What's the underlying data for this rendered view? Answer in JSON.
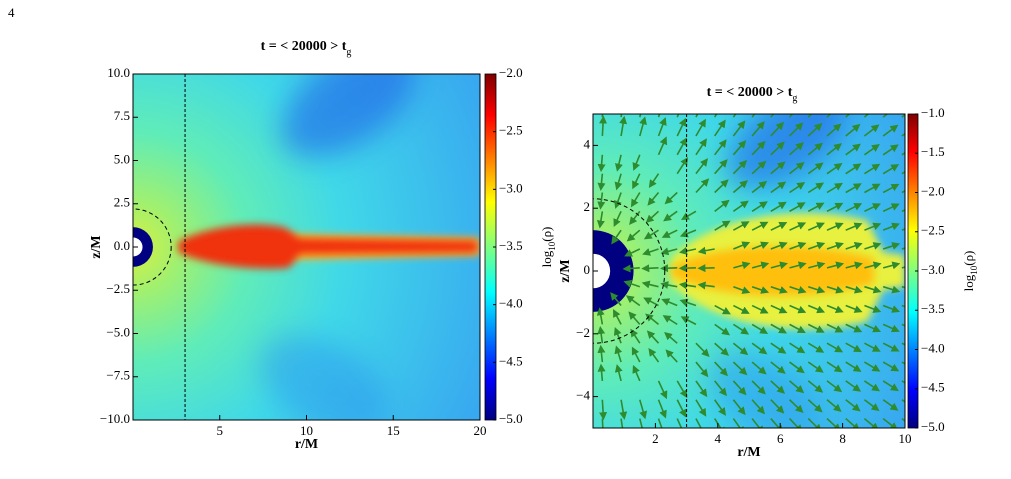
{
  "page_number": "4",
  "chart_data": [
    {
      "type": "heatmap",
      "title": "t = < 20000 > t",
      "title_subscript": "g",
      "xlabel": "r/M",
      "ylabel": "z/M",
      "xlim": [
        0,
        20
      ],
      "xticks": [
        5,
        10,
        15,
        20
      ],
      "ylim": [
        -10,
        10
      ],
      "yticks": [
        {
          "value": -10,
          "label": "−10.0"
        },
        {
          "value": -7.5,
          "label": "−7.5"
        },
        {
          "value": -5,
          "label": "−5.0"
        },
        {
          "value": -2.5,
          "label": "−2.5"
        },
        {
          "value": 0,
          "label": "0.0"
        },
        {
          "value": 2.5,
          "label": "2.5"
        },
        {
          "value": 5,
          "label": "5.0"
        },
        {
          "value": 7.5,
          "label": "7.5"
        },
        {
          "value": 10,
          "label": "10.0"
        }
      ],
      "colorbar_label": [
        "log",
        "10",
        "(ρ)"
      ],
      "clim": [
        -5,
        -2
      ],
      "cticks": [
        {
          "value": -5,
          "label": "−5.0"
        },
        {
          "value": -4.5,
          "label": "−4.5"
        },
        {
          "value": -4,
          "label": "−4.0"
        },
        {
          "value": -3.5,
          "label": "−3.5"
        },
        {
          "value": -3,
          "label": "−3.0"
        },
        {
          "value": -2.5,
          "label": "−2.5"
        },
        {
          "value": -2,
          "label": "−2.0"
        }
      ],
      "vline_x": 3,
      "dashed_circle_r": 2.2,
      "vectors": false
    },
    {
      "type": "heatmap",
      "title": "t = < 20000 > t",
      "title_subscript": "g",
      "xlabel": "r/M",
      "ylabel": "z/M",
      "xlim": [
        0,
        10
      ],
      "xticks": [
        2,
        4,
        6,
        8,
        10
      ],
      "ylim": [
        -5,
        5
      ],
      "yticks": [
        {
          "value": -4,
          "label": "−4"
        },
        {
          "value": -2,
          "label": "−2"
        },
        0,
        2,
        4
      ],
      "colorbar_label": [
        "log",
        "10",
        "(ρ)"
      ],
      "clim": [
        -5,
        -1
      ],
      "cticks": [
        {
          "value": -5,
          "label": "−5.0"
        },
        {
          "value": -4.5,
          "label": "−4.5"
        },
        {
          "value": -4,
          "label": "−4.0"
        },
        {
          "value": -3.5,
          "label": "−3.5"
        },
        {
          "value": -3,
          "label": "−3.0"
        },
        {
          "value": -2.5,
          "label": "−2.5"
        },
        {
          "value": -2,
          "label": "−2.0"
        },
        {
          "value": -1.5,
          "label": "−1.5"
        },
        {
          "value": -1,
          "label": "−1.0"
        }
      ],
      "vline_x": 3,
      "dashed_circle_r": 2.3,
      "vectors": true
    }
  ]
}
